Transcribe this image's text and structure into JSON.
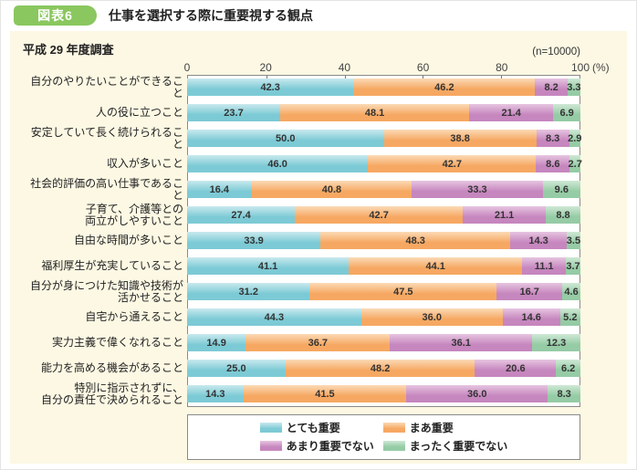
{
  "figure": {
    "badge": "図表6",
    "title": "仕事を選択する際に重要視する観点",
    "subtitle": "平成 29 年度調査",
    "sample_label": "(n=10000)",
    "percent_label": "(%)"
  },
  "colors": {
    "badge_green": "#8AC75F",
    "panel_cream": "#FCF8E3",
    "series": [
      {
        "name": "とても重要",
        "base": "#7CCAD5",
        "light": "#C9E9EE"
      },
      {
        "name": "まあ重要",
        "base": "#F6A862",
        "light": "#FBDAB6"
      },
      {
        "name": "あまり重要でない",
        "base": "#C686BE",
        "light": "#E6C5E0"
      },
      {
        "name": "まったく重要でない",
        "base": "#95CBA5",
        "light": "#CFE8D5"
      }
    ]
  },
  "chart_data": {
    "type": "bar",
    "orientation": "horizontal-stacked",
    "title": "仕事を選択する際に重要視する観点",
    "subtitle": "平成 29 年度調査",
    "sample_size": "n=10000",
    "xlim": [
      0,
      100
    ],
    "x_ticks": [
      0,
      20,
      40,
      60,
      80,
      100
    ],
    "x_unit": "(%)",
    "grid": false,
    "legend_position": "bottom",
    "categories": [
      "自分のやりたいことができること",
      "人の役に立つこと",
      "安定していて長く続けられること",
      "収入が多いこと",
      "社会的評価の高い仕事であること",
      "子育て、介護等との\n両立がしやすいこと",
      "自由な時間が多いこと",
      "福利厚生が充実していること",
      "自分が身につけた知識や技術が\n活かせること",
      "自宅から通えること",
      "実力主義で偉くなれること",
      "能力を高める機会があること",
      "特別に指示されずに、\n自分の責任で決められること"
    ],
    "series": [
      {
        "name": "とても重要",
        "values": [
          42.3,
          23.7,
          50.0,
          46.0,
          16.4,
          27.4,
          33.9,
          41.1,
          31.2,
          44.3,
          14.9,
          25.0,
          14.3
        ]
      },
      {
        "name": "まあ重要",
        "values": [
          46.2,
          48.1,
          38.8,
          42.7,
          40.8,
          42.7,
          48.3,
          44.1,
          47.5,
          36.0,
          36.7,
          48.2,
          41.5
        ]
      },
      {
        "name": "あまり重要でない",
        "values": [
          8.2,
          21.4,
          8.3,
          8.6,
          33.3,
          21.1,
          14.3,
          11.1,
          16.7,
          14.6,
          36.1,
          20.6,
          36.0
        ]
      },
      {
        "name": "まったく重要でない",
        "values": [
          3.3,
          6.9,
          2.9,
          2.7,
          9.6,
          8.8,
          3.5,
          3.7,
          4.6,
          5.2,
          12.3,
          6.2,
          8.3
        ]
      }
    ]
  }
}
